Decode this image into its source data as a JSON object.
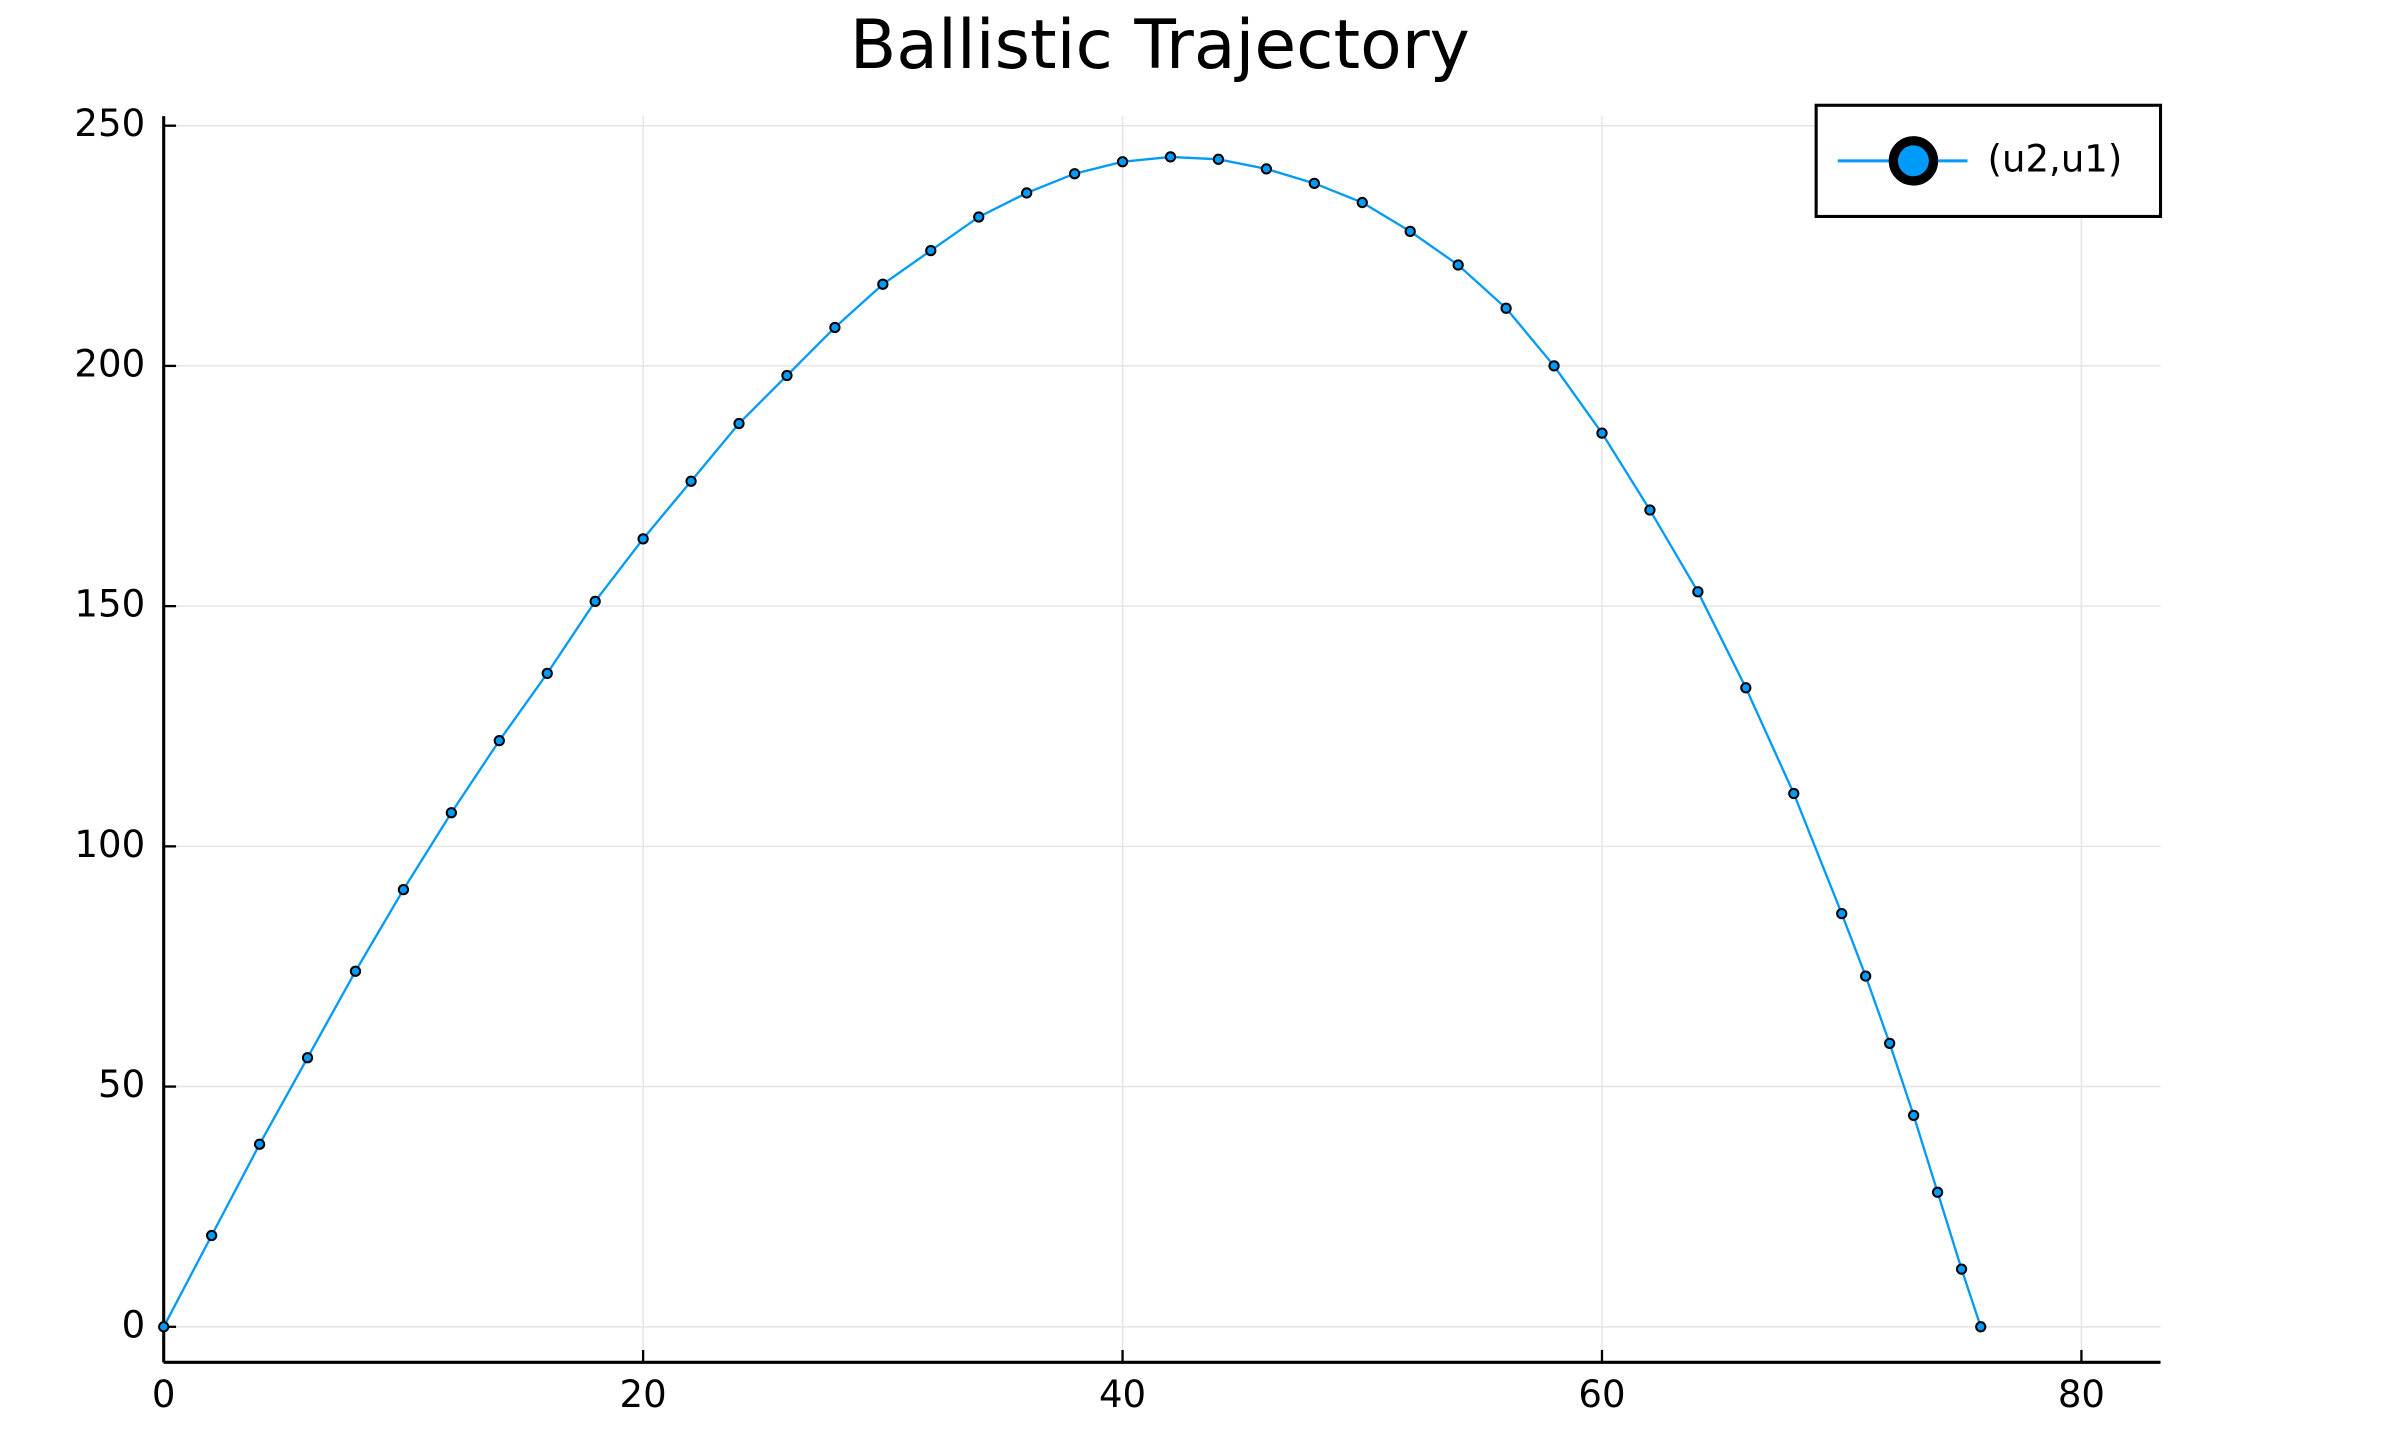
{
  "chart_data": {
    "type": "line",
    "title": "Ballistic Trajectory",
    "x": [
      0,
      2,
      4,
      6,
      8,
      10,
      12,
      14,
      16,
      18,
      20,
      22,
      24,
      26,
      28,
      30,
      32,
      34,
      36,
      38,
      40,
      42,
      44,
      46,
      48,
      50,
      52,
      54,
      56,
      58,
      60,
      62,
      64,
      66,
      68,
      70,
      71,
      72,
      73,
      74,
      75,
      75.8
    ],
    "series": [
      {
        "name": "(u2,u1)",
        "color": "#009af9",
        "values": [
          0,
          19,
          38,
          56,
          74,
          91,
          107,
          122,
          136,
          151,
          164,
          176,
          188,
          198,
          208,
          217,
          224,
          231,
          236,
          240,
          242.5,
          243.5,
          243,
          241,
          238,
          234,
          228,
          221,
          212,
          200,
          186,
          170,
          153,
          133,
          111,
          86,
          73,
          59,
          44,
          28,
          12,
          0
        ]
      }
    ],
    "xlim": [
      0,
      83.3
    ],
    "ylim": [
      -7.4,
      252
    ],
    "xticks": [
      0,
      20,
      40,
      60,
      80
    ],
    "yticks": [
      0,
      50,
      100,
      150,
      200,
      250
    ],
    "grid": true,
    "legend": "top-right"
  }
}
